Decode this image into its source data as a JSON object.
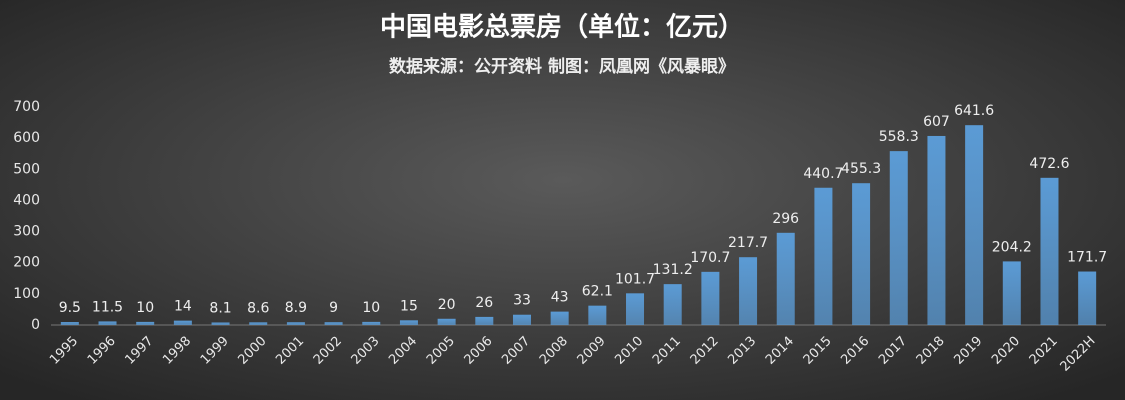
{
  "chart_data": {
    "type": "bar",
    "title": "中国电影总票房（单位：亿元）",
    "subtitle": "数据来源：公开资料  制图：凤凰网《风暴眼》",
    "categories": [
      "1995",
      "1996",
      "1997",
      "1998",
      "1999",
      "2000",
      "2001",
      "2002",
      "2003",
      "2004",
      "2005",
      "2006",
      "2007",
      "2008",
      "2009",
      "2010",
      "2011",
      "2012",
      "2013",
      "2014",
      "2015",
      "2016",
      "2017",
      "2018",
      "2019",
      "2020",
      "2021",
      "2022H"
    ],
    "values": [
      9.5,
      11.5,
      10,
      14,
      8.1,
      8.6,
      8.9,
      9,
      10,
      15,
      20,
      26,
      33,
      43,
      62.1,
      101.7,
      131.2,
      170.7,
      217.7,
      296,
      440.7,
      455.3,
      558.3,
      607,
      641.6,
      204.2,
      472.6,
      171.7
    ],
    "color": "#5b9bd5",
    "ylim": [
      0,
      700
    ],
    "yticks": [
      0,
      100,
      200,
      300,
      400,
      500,
      600,
      700
    ],
    "grid": false
  }
}
